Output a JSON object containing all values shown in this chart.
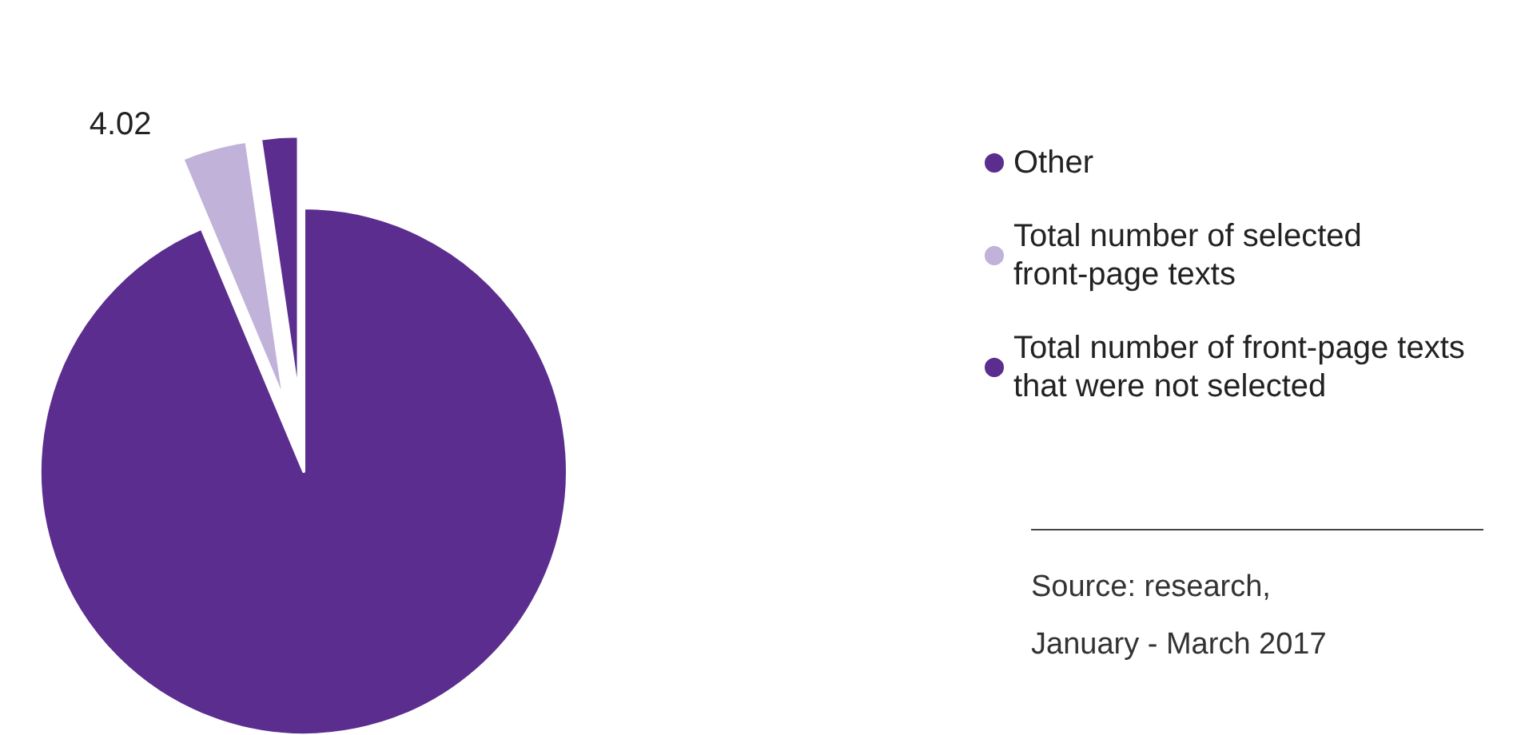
{
  "chart_data": {
    "type": "pie",
    "categories": [
      "Other",
      "Total number of selected front-page texts",
      "Total number of front-page texts that were not selected"
    ],
    "values": [
      2.3,
      4.02,
      93.68
    ],
    "colors": [
      "#5b2d8e",
      "#c0b2d9",
      "#5b2d8e"
    ],
    "value_labels": [
      null,
      "4.02",
      null
    ],
    "legend": "right",
    "annotations": [
      "Source: research,\nJanuary - March 2017"
    ]
  }
}
